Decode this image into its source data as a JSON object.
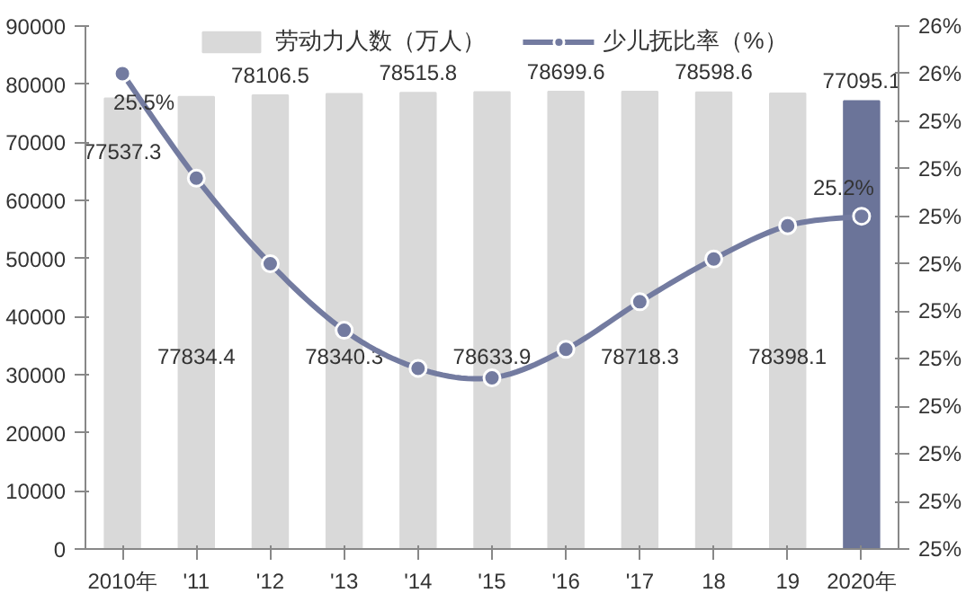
{
  "chart_data": {
    "type": "bar",
    "categories": [
      "2010年",
      "'11",
      "'12",
      "'13",
      "'14",
      "'15",
      "'16",
      "'17",
      "18",
      "19",
      "2020年"
    ],
    "series": [
      {
        "name": "劳动力人数（万人）",
        "colors": [
          "#d9d9d9",
          "#d9d9d9",
          "#d9d9d9",
          "#d9d9d9",
          "#d9d9d9",
          "#d9d9d9",
          "#d9d9d9",
          "#d9d9d9",
          "#d9d9d9",
          "#d9d9d9",
          "#6b7499"
        ],
        "values": [
          77537.3,
          77834.4,
          78106.5,
          78340.3,
          78515.8,
          78633.9,
          78699.6,
          78718.3,
          78598.6,
          78398.1,
          77095.1
        ],
        "data_labels": true
      },
      {
        "name": "少儿抚比率（%）",
        "type": "line",
        "axis": "y2",
        "color": "#737ba0",
        "marker": "circle",
        "values": [
          25.5,
          25.28,
          25.1,
          24.96,
          24.88,
          24.86,
          24.92,
          25.02,
          25.11,
          25.18,
          25.2
        ],
        "value_labels": [
          "25.5%",
          null,
          null,
          null,
          null,
          null,
          null,
          null,
          null,
          null,
          "25.2%"
        ]
      }
    ],
    "ylim": [
      0,
      90000
    ],
    "yticks": [
      0,
      10000,
      20000,
      30000,
      40000,
      50000,
      60000,
      70000,
      80000,
      90000
    ],
    "y2lim": [
      24.5,
      25.6
    ],
    "y2ticks": [
      {
        "value": 24.5,
        "label": "25%"
      },
      {
        "value": 24.6,
        "label": "25%"
      },
      {
        "value": 24.7,
        "label": "25%"
      },
      {
        "value": 24.8,
        "label": "25%"
      },
      {
        "value": 24.9,
        "label": "25%"
      },
      {
        "value": 25.0,
        "label": "25%"
      },
      {
        "value": 25.1,
        "label": "25%"
      },
      {
        "value": 25.2,
        "label": "25%"
      },
      {
        "value": 25.3,
        "label": "25%"
      },
      {
        "value": 25.4,
        "label": "25%"
      },
      {
        "value": 25.5,
        "label": "26%"
      },
      {
        "value": 25.6,
        "label": "26%"
      }
    ],
    "grid": false,
    "legend": "top",
    "line_style": "solid"
  }
}
